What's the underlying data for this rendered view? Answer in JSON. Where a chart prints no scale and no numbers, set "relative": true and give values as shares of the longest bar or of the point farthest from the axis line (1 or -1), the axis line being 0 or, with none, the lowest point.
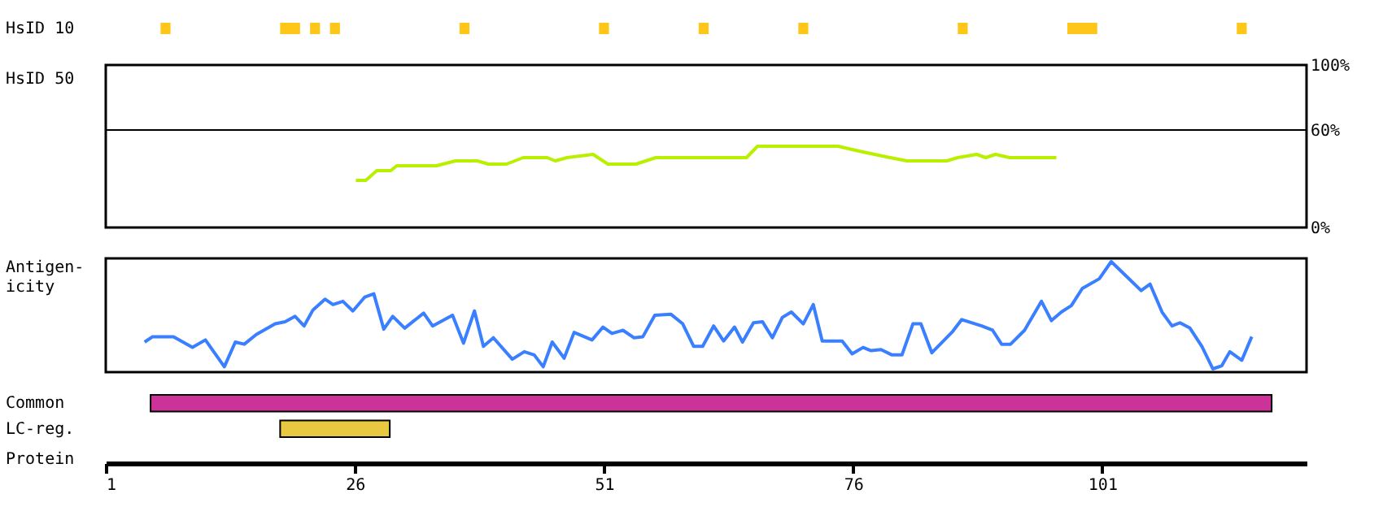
{
  "chart_data": [
    {
      "type": "bar",
      "orientation": "horizontal",
      "categories": [
        "HsID 10"
      ],
      "xlim": [
        1,
        121.5
      ],
      "tick_labels": "y",
      "series": [
        {
          "color": "#ffc61a",
          "base": [
            6.5
          ],
          "values": [
            1
          ]
        },
        {
          "color": "#ffc61a",
          "base": [
            18.5
          ],
          "values": [
            2
          ]
        },
        {
          "color": "#ffc61a",
          "base": [
            21.5
          ],
          "values": [
            1
          ]
        },
        {
          "color": "#ffc61a",
          "base": [
            23.5
          ],
          "values": [
            1
          ]
        },
        {
          "color": "#ffc61a",
          "base": [
            36.5
          ],
          "values": [
            1
          ]
        },
        {
          "color": "#ffc61a",
          "base": [
            50.5
          ],
          "values": [
            1
          ]
        },
        {
          "color": "#ffc61a",
          "base": [
            60.5
          ],
          "values": [
            1
          ]
        },
        {
          "color": "#ffc61a",
          "base": [
            70.5
          ],
          "values": [
            1
          ]
        },
        {
          "color": "#ffc61a",
          "base": [
            86.5
          ],
          "values": [
            1
          ]
        },
        {
          "color": "#ffc61a",
          "base": [
            97.5
          ],
          "values": [
            3
          ]
        },
        {
          "color": "#ffc61a",
          "base": [
            114.5
          ],
          "values": [
            1
          ]
        }
      ]
    },
    {
      "type": "line",
      "ylabel": "HsID 50",
      "xlim": [
        1,
        121.5
      ],
      "ylim": [
        0,
        100
      ],
      "yticks": [
        {
          "value": 0,
          "label": "0%"
        },
        {
          "value": 60,
          "label": "60%"
        },
        {
          "value": 100,
          "label": "100%"
        }
      ],
      "tick_labels": "y",
      "grid": false,
      "marker": "none",
      "line_style": "solid",
      "ref_lines": [
        {
          "axis": "y",
          "value": 60,
          "color": "#000000"
        }
      ],
      "series": [
        {
          "color": "#b8f000",
          "x": [
            26.1,
            27.1,
            28.2,
            29.6,
            30.2,
            34.2,
            36.1,
            38.3,
            39.4,
            41.2,
            42.9,
            45.3,
            46.1,
            47.3,
            49.9,
            51.4,
            54.2,
            56.2,
            65.3,
            66.4,
            74.5,
            76.6,
            79.7,
            81.4,
            85.4,
            86.5,
            88.4,
            89.3,
            90.3,
            91.7,
            96.4
          ],
          "values": [
            29,
            29,
            35,
            35,
            38,
            38,
            41,
            41,
            39,
            39,
            43,
            43,
            41,
            43,
            45,
            39,
            39,
            43,
            43,
            50,
            50,
            47,
            43,
            41,
            41,
            43,
            45,
            43,
            45,
            43,
            43
          ]
        }
      ]
    },
    {
      "type": "line",
      "ylabel": "Antigen-\nicity",
      "relative": true,
      "xlim": [
        1,
        121.5
      ],
      "tick_labels": false,
      "grid": false,
      "marker": "none",
      "line_style": "solid",
      "series": [
        {
          "color": "#3a7fff",
          "x": [
            4.9,
            5.7,
            7.8,
            9.7,
            11,
            12.9,
            14,
            14.9,
            16.1,
            18,
            19,
            20,
            20.9,
            21.8,
            23,
            23.8,
            24.8,
            25.8,
            27,
            27.9,
            28.9,
            29.8,
            31,
            32.9,
            33.8,
            35.8,
            36.9,
            38,
            38.9,
            39.9,
            41.8,
            43,
            44,
            44.9,
            45.8,
            47,
            48,
            49.8,
            50.9,
            51.8,
            52.9,
            54,
            54.9,
            56.1,
            57.7,
            58.9,
            60,
            60.9,
            62,
            63,
            64.1,
            64.9,
            66,
            66.9,
            67.9,
            68.9,
            69.8,
            71,
            72,
            72.9,
            74.9,
            75.9,
            77,
            77.8,
            78.8,
            79.9,
            80.9,
            82,
            82.8,
            83.9,
            86,
            86.9,
            88.9,
            90,
            90.9,
            91.8,
            93.2,
            94.9,
            95.9,
            96.9,
            97.9,
            99,
            100.7,
            101.9,
            103.8,
            104.9,
            105.8,
            107,
            108,
            108.8,
            109.8,
            111,
            112.1,
            113,
            113.8,
            115,
            116
          ],
          "values": [
            0.25,
            0.3,
            0.3,
            0.2,
            0.27,
            0.02,
            0.25,
            0.23,
            0.32,
            0.42,
            0.44,
            0.49,
            0.4,
            0.55,
            0.65,
            0.6,
            0.63,
            0.54,
            0.67,
            0.7,
            0.37,
            0.49,
            0.38,
            0.52,
            0.4,
            0.5,
            0.24,
            0.54,
            0.21,
            0.29,
            0.09,
            0.16,
            0.13,
            0.02,
            0.25,
            0.1,
            0.34,
            0.27,
            0.39,
            0.33,
            0.36,
            0.29,
            0.3,
            0.5,
            0.51,
            0.42,
            0.21,
            0.21,
            0.4,
            0.26,
            0.39,
            0.25,
            0.43,
            0.44,
            0.29,
            0.48,
            0.53,
            0.42,
            0.6,
            0.26,
            0.26,
            0.14,
            0.2,
            0.17,
            0.18,
            0.13,
            0.13,
            0.42,
            0.42,
            0.15,
            0.35,
            0.46,
            0.4,
            0.36,
            0.23,
            0.23,
            0.36,
            0.63,
            0.45,
            0.53,
            0.59,
            0.75,
            0.84,
            1.0,
            0.83,
            0.73,
            0.79,
            0.53,
            0.4,
            0.43,
            0.38,
            0.21,
            0.0,
            0.03,
            0.16,
            0.08,
            0.3
          ]
        }
      ]
    },
    {
      "type": "bar",
      "orientation": "horizontal",
      "categories": [
        "Common",
        "LC-reg."
      ],
      "xlabel": "Protein",
      "xlim": [
        1,
        121.5
      ],
      "xticks": [
        1,
        26,
        51,
        76,
        101
      ],
      "base": [
        5.5,
        18.5
      ],
      "values": [
        112.5,
        11
      ],
      "colors": [
        "#cc3399",
        "#e8c840"
      ]
    }
  ]
}
